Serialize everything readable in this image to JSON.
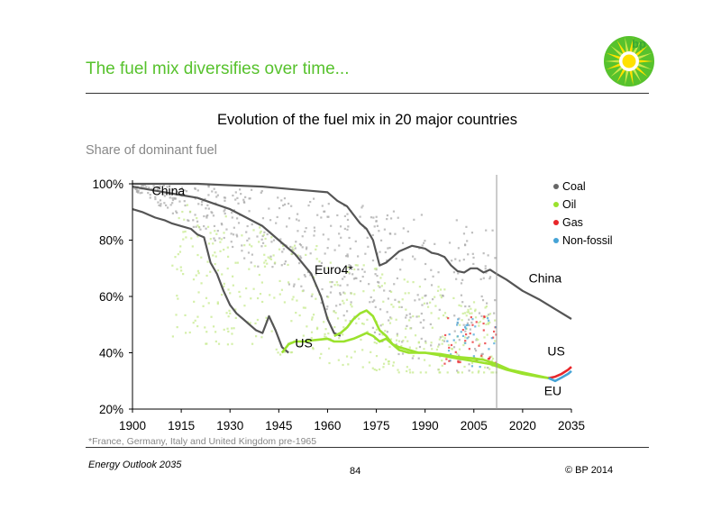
{
  "header": {
    "title": "The fuel mix diversifies over time...",
    "logo_text": "bp",
    "brand_colors": {
      "green": "#57c22d",
      "yellow": "#ffe100"
    }
  },
  "chart_data": {
    "type": "scatter",
    "title": "Evolution of the fuel mix in 20 major countries",
    "ylabel": "Share of dominant fuel",
    "xlabel": "",
    "xlim": [
      1900,
      2035
    ],
    "ylim": [
      20,
      100
    ],
    "x_ticks": [
      "1900",
      "1915",
      "1930",
      "1945",
      "1960",
      "1975",
      "1990",
      "2005",
      "2020",
      "2035"
    ],
    "y_ticks": [
      "20%",
      "40%",
      "60%",
      "80%",
      "100%"
    ],
    "projection_start": 2012,
    "grid": false,
    "legend_position": "top-right",
    "legend": [
      {
        "name": "Coal",
        "color": "#666666"
      },
      {
        "name": "Oil",
        "color": "#9be22d"
      },
      {
        "name": "Gas",
        "color": "#e8262a"
      },
      {
        "name": "Non-fossil",
        "color": "#45a3d6"
      }
    ],
    "annotations": [
      {
        "text": "China",
        "x": 1906,
        "y": 96
      },
      {
        "text": "Euro4*",
        "x": 1956,
        "y": 68
      },
      {
        "text": "US",
        "x": 1950,
        "y": 42
      },
      {
        "text": "China",
        "x": 2032,
        "y": 65
      },
      {
        "text": "US",
        "x": 2033,
        "y": 39
      },
      {
        "text": "EU",
        "x": 2032,
        "y": 25
      }
    ],
    "series": [
      {
        "name": "China",
        "color": "#555555",
        "points": [
          [
            1900,
            100
          ],
          [
            1910,
            100
          ],
          [
            1920,
            100
          ],
          [
            1930,
            99.5
          ],
          [
            1940,
            99
          ],
          [
            1950,
            98
          ],
          [
            1955,
            97.5
          ],
          [
            1960,
            97
          ],
          [
            1963,
            94
          ],
          [
            1966,
            92
          ],
          [
            1970,
            86
          ],
          [
            1972,
            84
          ],
          [
            1974,
            80
          ],
          [
            1976,
            71
          ],
          [
            1978,
            72
          ],
          [
            1980,
            74
          ],
          [
            1982,
            76
          ],
          [
            1984,
            77
          ],
          [
            1986,
            78
          ],
          [
            1988,
            77.5
          ],
          [
            1990,
            77
          ],
          [
            1992,
            75.5
          ],
          [
            1994,
            75
          ],
          [
            1996,
            74
          ],
          [
            1998,
            71
          ],
          [
            2000,
            69
          ],
          [
            2002,
            68.5
          ],
          [
            2004,
            70
          ],
          [
            2006,
            70
          ],
          [
            2008,
            68.5
          ],
          [
            2010,
            69.5
          ],
          [
            2012,
            68
          ],
          [
            2015,
            66
          ],
          [
            2020,
            62
          ],
          [
            2025,
            59
          ],
          [
            2030,
            55.5
          ],
          [
            2035,
            52
          ]
        ]
      },
      {
        "name": "Euro4*",
        "color": "#555555",
        "points": [
          [
            1900,
            99
          ],
          [
            1905,
            98
          ],
          [
            1910,
            97
          ],
          [
            1915,
            96
          ],
          [
            1920,
            95
          ],
          [
            1925,
            93
          ],
          [
            1930,
            91
          ],
          [
            1935,
            88
          ],
          [
            1940,
            85
          ],
          [
            1945,
            80
          ],
          [
            1950,
            75
          ],
          [
            1955,
            68
          ],
          [
            1958,
            60
          ],
          [
            1960,
            52
          ],
          [
            1962,
            47
          ],
          [
            1964,
            46
          ]
        ]
      },
      {
        "name": "US",
        "color": "#555555",
        "points": [
          [
            1900,
            91
          ],
          [
            1903,
            90
          ],
          [
            1905,
            89
          ],
          [
            1907,
            88
          ],
          [
            1910,
            87
          ],
          [
            1912,
            86
          ],
          [
            1915,
            85
          ],
          [
            1918,
            84
          ],
          [
            1920,
            82
          ],
          [
            1922,
            81
          ],
          [
            1924,
            72
          ],
          [
            1926,
            68
          ],
          [
            1928,
            62
          ],
          [
            1930,
            57
          ],
          [
            1932,
            54
          ],
          [
            1934,
            52
          ],
          [
            1936,
            50
          ],
          [
            1938,
            48
          ],
          [
            1940,
            47
          ],
          [
            1942,
            53
          ],
          [
            1944,
            48
          ],
          [
            1946,
            42
          ],
          [
            1948,
            40
          ]
        ]
      },
      {
        "name": "US (oil)",
        "color": "#9be22d",
        "points": [
          [
            1946,
            40
          ],
          [
            1948,
            43
          ],
          [
            1950,
            44
          ],
          [
            1953,
            44
          ],
          [
            1956,
            44.5
          ],
          [
            1960,
            45
          ],
          [
            1962,
            44
          ],
          [
            1965,
            44
          ],
          [
            1968,
            45
          ],
          [
            1970,
            46
          ],
          [
            1972,
            47
          ],
          [
            1974,
            46
          ],
          [
            1976,
            44
          ],
          [
            1978,
            45
          ],
          [
            1980,
            43
          ],
          [
            1982,
            42
          ],
          [
            1985,
            41
          ],
          [
            1988,
            40
          ],
          [
            1990,
            40
          ],
          [
            1995,
            39.5
          ],
          [
            2000,
            38.5
          ],
          [
            2005,
            38
          ],
          [
            2008,
            37.5
          ],
          [
            2012,
            36
          ],
          [
            2016,
            34
          ],
          [
            2020,
            33
          ],
          [
            2024,
            32
          ],
          [
            2028,
            31
          ]
        ]
      },
      {
        "name": "Euro4 (oil)",
        "color": "#9be22d",
        "points": [
          [
            1962,
            46
          ],
          [
            1964,
            47
          ],
          [
            1966,
            49
          ],
          [
            1968,
            52
          ],
          [
            1970,
            54
          ],
          [
            1972,
            55
          ],
          [
            1974,
            53
          ],
          [
            1976,
            48
          ],
          [
            1978,
            46
          ],
          [
            1980,
            43
          ],
          [
            1982,
            41
          ],
          [
            1985,
            40
          ],
          [
            1990,
            40
          ],
          [
            1995,
            39
          ],
          [
            2000,
            38
          ],
          [
            2005,
            37
          ],
          [
            2010,
            36
          ],
          [
            2015,
            34
          ],
          [
            2020,
            32.5
          ],
          [
            2025,
            31.5
          ],
          [
            2028,
            31
          ]
        ]
      },
      {
        "name": "US (gas)",
        "color": "#e8262a",
        "points": [
          [
            2028,
            31
          ],
          [
            2030,
            31.5
          ],
          [
            2032,
            32.5
          ],
          [
            2034,
            34
          ],
          [
            2035,
            35
          ]
        ]
      },
      {
        "name": "EU (non-fossil)",
        "color": "#45a3d6",
        "points": [
          [
            2028,
            31
          ],
          [
            2030,
            30
          ],
          [
            2032,
            31.2
          ],
          [
            2034,
            32.5
          ],
          [
            2035,
            33.5
          ]
        ]
      }
    ]
  },
  "footer": {
    "footnote": "*France, Germany, Italy and United Kingdom pre-1965",
    "left": "Energy Outlook 2035",
    "center": "84",
    "right": "© BP 2014"
  }
}
